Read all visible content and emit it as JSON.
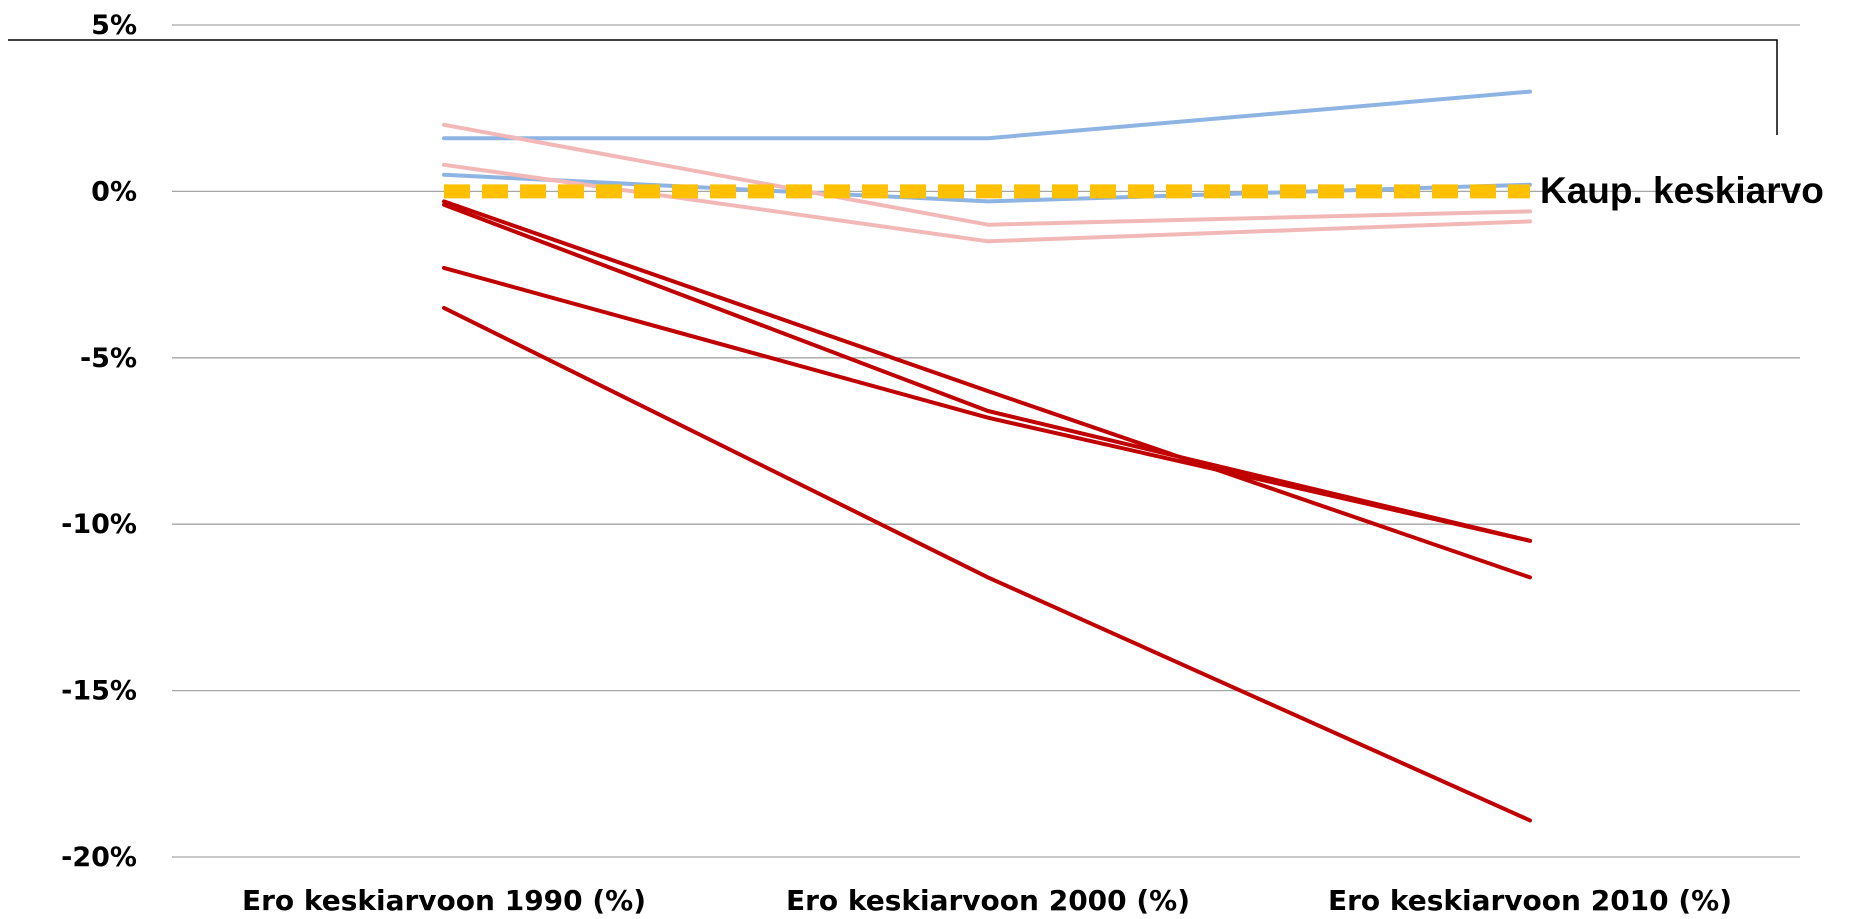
{
  "chart_data": {
    "type": "line",
    "categories": [
      "Ero keskiarvoon 1990 (%)",
      "Ero keskiarvoon 2000 (%)",
      "Ero keskiarvoon 2010 (%)"
    ],
    "yticks": [
      "5%",
      "0%",
      "-5%",
      "-10%",
      "-15%",
      "-20%"
    ],
    "ylim": [
      -20,
      5
    ],
    "grid": true,
    "annotation": "Kaup. keskiarvo",
    "series": [
      {
        "values": [
          1.6,
          1.6,
          3.0
        ],
        "color": "#8db4e2"
      },
      {
        "values": [
          0.5,
          -0.3,
          0.2
        ],
        "color": "#8db4e2"
      },
      {
        "values": [
          2.0,
          -1.0,
          -0.6
        ],
        "color": "#f2b8b8"
      },
      {
        "values": [
          0.8,
          -1.5,
          -0.9
        ],
        "color": "#f2b8b8"
      },
      {
        "values": [
          -0.3,
          -6.0,
          -11.6
        ],
        "color": "#c00000"
      },
      {
        "values": [
          -0.4,
          -6.6,
          -10.5
        ],
        "color": "#c00000"
      },
      {
        "values": [
          -2.3,
          -6.8,
          -10.5
        ],
        "color": "#c00000"
      },
      {
        "values": [
          -3.5,
          -11.6,
          -18.9
        ],
        "color": "#c00000"
      },
      {
        "values": [
          0,
          0,
          0
        ],
        "color": "#ffc000",
        "dashed": true
      }
    ]
  }
}
